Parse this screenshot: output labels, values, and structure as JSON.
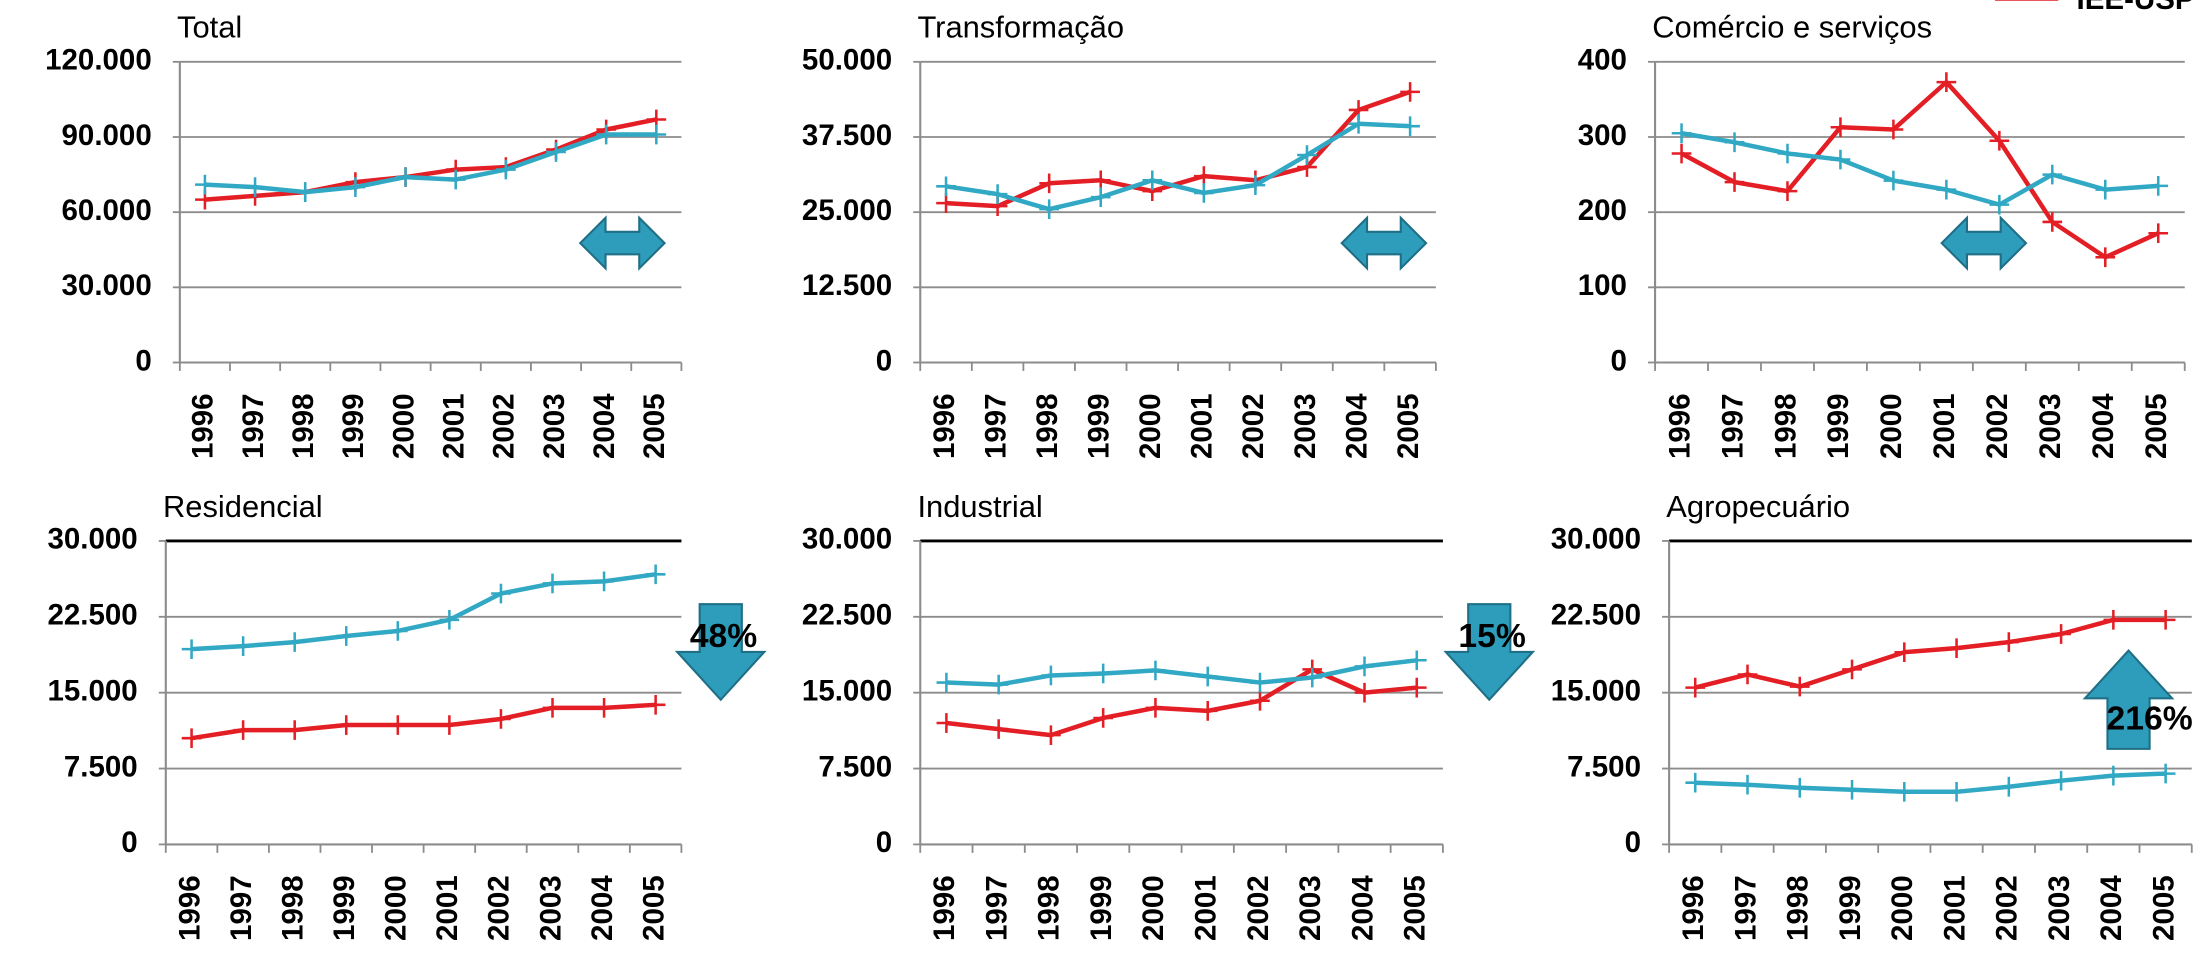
{
  "legend": {
    "name": "IEE-USP",
    "color": "#e31e24"
  },
  "chart_data": [
    {
      "type": "line",
      "title": "Total",
      "categories": [
        "1996",
        "1997",
        "1998",
        "1999",
        "2000",
        "2001",
        "2002",
        "2003",
        "2004",
        "2005"
      ],
      "series": [
        {
          "color": "#e31e24",
          "values": [
            65000,
            66500,
            68000,
            72000,
            74000,
            77000,
            78000,
            85000,
            93000,
            97000
          ]
        },
        {
          "color": "#31a8c4",
          "values": [
            71000,
            70000,
            68000,
            70000,
            74000,
            73000,
            77000,
            84000,
            91000,
            91000
          ]
        }
      ],
      "ylim": [
        0,
        120000
      ],
      "yticks": [
        0,
        {
          "value": 30000,
          "label": "30.000"
        },
        {
          "value": 60000,
          "label": "60.000"
        },
        {
          "value": 90000,
          "label": "90.000"
        },
        {
          "value": 120000,
          "label": "120.000"
        }
      ],
      "grid": true
    },
    {
      "type": "line",
      "title": "Transformação",
      "categories": [
        "1996",
        "1997",
        "1998",
        "1999",
        "2000",
        "2001",
        "2002",
        "2003",
        "2004",
        "2005"
      ],
      "series": [
        {
          "color": "#e31e24",
          "values": [
            26500,
            26000,
            29800,
            30300,
            28500,
            31000,
            30300,
            32500,
            42000,
            45000
          ]
        },
        {
          "color": "#31a8c4",
          "values": [
            29300,
            28000,
            25500,
            27500,
            30300,
            28200,
            29500,
            34500,
            39700,
            39300
          ]
        }
      ],
      "ylim": [
        0,
        50000
      ],
      "yticks": [
        0,
        {
          "value": 12500,
          "label": "12.500"
        },
        {
          "value": 25000,
          "label": "25.000"
        },
        {
          "value": 37500,
          "label": "37.500"
        },
        {
          "value": 50000,
          "label": "50.000"
        }
      ],
      "grid": true
    },
    {
      "type": "line",
      "title": "Comércio e serviços",
      "categories": [
        "1996",
        "1997",
        "1998",
        "1999",
        "2000",
        "2001",
        "2002",
        "2003",
        "2004",
        "2005"
      ],
      "series": [
        {
          "color": "#e31e24",
          "values": [
            278,
            240,
            228,
            313,
            310,
            373,
            295,
            187,
            140,
            172
          ]
        },
        {
          "color": "#31a8c4",
          "values": [
            305,
            293,
            278,
            270,
            242,
            230,
            210,
            250,
            230,
            235
          ]
        }
      ],
      "ylim": [
        0,
        400
      ],
      "yticks": [
        0,
        100,
        200,
        300,
        400
      ],
      "grid": true
    },
    {
      "type": "line",
      "title": "Residencial",
      "categories": [
        "1996",
        "1997",
        "1998",
        "1999",
        "2000",
        "2001",
        "2002",
        "2003",
        "2004",
        "2005"
      ],
      "series": [
        {
          "color": "#e31e24",
          "values": [
            10500,
            11300,
            11300,
            11800,
            11800,
            11800,
            12400,
            13500,
            13500,
            13800
          ]
        },
        {
          "color": "#31a8c4",
          "values": [
            19300,
            19600,
            20000,
            20600,
            21100,
            22200,
            24800,
            25800,
            26000,
            26700
          ]
        }
      ],
      "ylim": [
        0,
        30000
      ],
      "yticks": [
        0,
        {
          "value": 7500,
          "label": "7.500"
        },
        {
          "value": 15000,
          "label": "15.000"
        },
        {
          "value": 22500,
          "label": "22.500"
        },
        {
          "value": 30000,
          "label": "30.000"
        }
      ],
      "grid": true,
      "annotation": "48%"
    },
    {
      "type": "line",
      "title": "Industrial",
      "categories": [
        "1996",
        "1997",
        "1998",
        "1999",
        "2000",
        "2001",
        "2002",
        "2003",
        "2004",
        "2005"
      ],
      "series": [
        {
          "color": "#e31e24",
          "values": [
            12000,
            11400,
            10800,
            12500,
            13500,
            13200,
            14200,
            17300,
            15000,
            15500
          ]
        },
        {
          "color": "#31a8c4",
          "values": [
            16000,
            15800,
            16700,
            16900,
            17200,
            16600,
            16000,
            16500,
            17600,
            18200
          ]
        }
      ],
      "ylim": [
        0,
        30000
      ],
      "yticks": [
        0,
        {
          "value": 7500,
          "label": "7.500"
        },
        {
          "value": 15000,
          "label": "15.000"
        },
        {
          "value": 22500,
          "label": "22.500"
        },
        {
          "value": 30000,
          "label": "30.000"
        }
      ],
      "grid": true,
      "annotation": "15%"
    },
    {
      "type": "line",
      "title": "Agropecuário",
      "categories": [
        "1996",
        "1997",
        "1998",
        "1999",
        "2000",
        "2001",
        "2002",
        "2003",
        "2004",
        "2005"
      ],
      "series": [
        {
          "color": "#e31e24",
          "values": [
            15500,
            16800,
            15600,
            17300,
            19000,
            19400,
            20000,
            20800,
            22200,
            22200
          ]
        },
        {
          "color": "#31a8c4",
          "values": [
            6100,
            5900,
            5600,
            5400,
            5200,
            5200,
            5700,
            6300,
            6800,
            7000
          ]
        }
      ],
      "ylim": [
        0,
        30000
      ],
      "yticks": [
        0,
        {
          "value": 7500,
          "label": "7.500"
        },
        {
          "value": 15000,
          "label": "15.000"
        },
        {
          "value": 22500,
          "label": "22.500"
        },
        {
          "value": 30000,
          "label": "30.000"
        }
      ],
      "grid": true,
      "annotation": "216%"
    }
  ]
}
